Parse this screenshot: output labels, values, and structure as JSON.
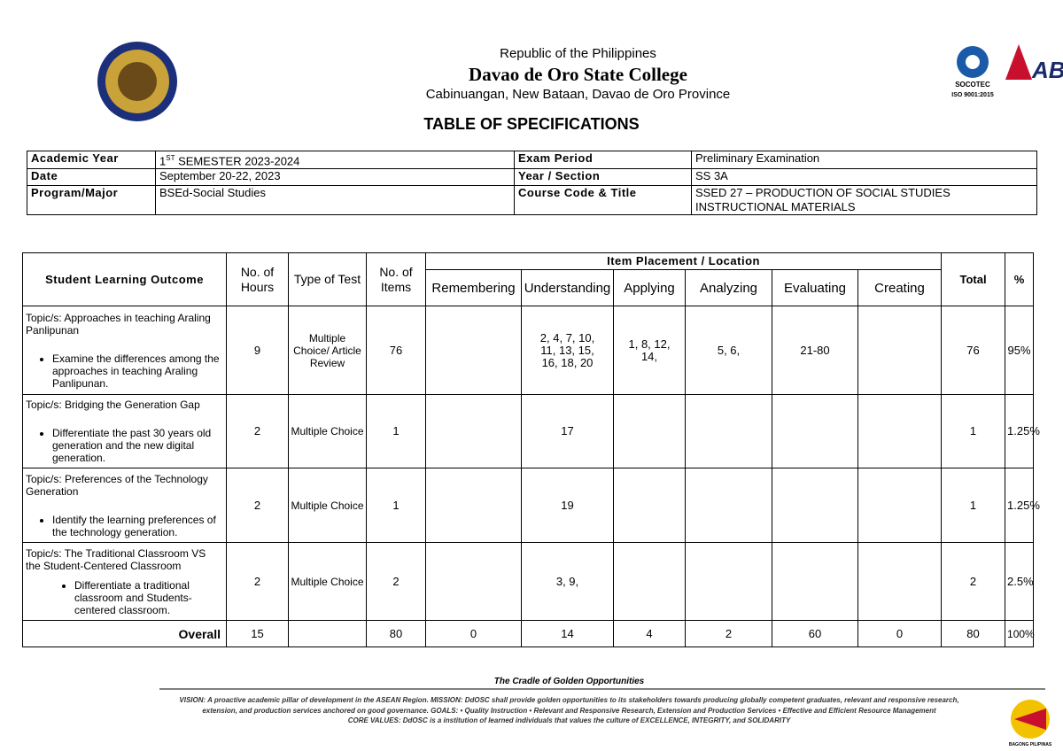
{
  "header": {
    "republic": "Republic of the Philippines",
    "college": "Davao de Oro State College",
    "address": "Cabinuangan, New Bataan, Davao de Oro Province",
    "title": "TABLE OF SPECIFICATIONS"
  },
  "logos": {
    "socotec": "SOCOTEC",
    "iso": "ISO 9001:2015",
    "bagong": "BAGONG PILIPINAS"
  },
  "info": {
    "rows": [
      [
        {
          "label": "Academic Year"
        },
        {
          "prefix": "1",
          "sup": "ST",
          "rest": "SEMESTER 2023-2024"
        },
        {
          "label": "Exam Period"
        },
        {
          "text": "Preliminary Examination"
        }
      ],
      [
        {
          "label": "Date"
        },
        {
          "text": "September 20-22, 2023"
        },
        {
          "label": "Year / Section"
        },
        {
          "text": "SS 3A"
        }
      ],
      [
        {
          "label": "Program/Major"
        },
        {
          "text": "BSEd-Social Studies"
        },
        {
          "label": "Course Code & Title"
        },
        {
          "text": "SSED 27 – PRODUCTION OF SOCIAL STUDIES INSTRUCTIONAL MATERIALS"
        }
      ]
    ]
  },
  "table": {
    "headers": {
      "outcome": "Student Learning Outcome",
      "hours": "No. of Hours",
      "type": "Type of Test",
      "items": "No. of Items",
      "placement": "Item Placement / Location",
      "levels": [
        "Remembering",
        "Understanding",
        "Applying",
        "Analyzing",
        "Evaluating",
        "Creating"
      ],
      "total": "Total",
      "percent": "%"
    },
    "rows": [
      {
        "topic": "Topic/s: Approaches in teaching Araling Panlipunan",
        "outcome": "Examine the differences among the approaches in teaching Araling Panlipunan.",
        "hours": 9,
        "type": "Multiple Choice/ Article Review",
        "items": 76,
        "placements": [
          null,
          "2, 4, 7, 10, 11, 13, 15, 16, 18, 20",
          "1, 8, 12, 14,",
          "5, 6,",
          "21-80",
          null
        ],
        "total": 76,
        "percent": "95%"
      },
      {
        "topic": "Topic/s: Bridging the Generation Gap",
        "outcome": "Differentiate the past 30 years old generation and the new digital generation.",
        "hours": 2,
        "type": "Multiple Choice",
        "items": 1,
        "placements": [
          null,
          "17",
          null,
          null,
          null,
          null
        ],
        "total": 1,
        "percent": "1.25%"
      },
      {
        "topic": "Topic/s: Preferences of the Technology Generation",
        "outcome": "Identify the learning preferences of the technology generation.",
        "hours": 2,
        "type": "Multiple Choice",
        "items": 1,
        "placements": [
          null,
          "19",
          null,
          null,
          null,
          null
        ],
        "total": 1,
        "percent": "1.25%"
      },
      {
        "topic": "Topic/s: The Traditional Classroom VS the Student-Centered Classroom",
        "outcome": "Differentiate a traditional classroom and Students-centered classroom.",
        "hours": 2,
        "type": "Multiple Choice",
        "items": 2,
        "placements": [
          null,
          "3, 9,",
          null,
          null,
          null,
          null
        ],
        "total": 2,
        "percent": "2.5%"
      }
    ],
    "overall": {
      "label": "Overall",
      "hours": 15,
      "type": null,
      "items": 80,
      "placements": [
        0,
        14,
        4,
        2,
        60,
        0
      ],
      "total": 80,
      "percent": "100%"
    }
  },
  "footer": {
    "tagline": "The Cradle of Golden Opportunities",
    "lines": [
      "VISION: A proactive academic pillar of development in the ASEAN Region. MISSION: DdOSC shall provide golden opportunities to its stakeholders towards producing globally competent graduates, relevant and responsive research,",
      "extension, and production services anchored on good governance. GOALS: • Quality Instruction • Relevant and Responsive Research, Extension and Production Services • Effective and Efficient Resource Management",
      "CORE VALUES: DdOSC is a institution of learned individuals that values the culture of EXCELLENCE, INTEGRITY, and SOLIDARITY"
    ]
  }
}
